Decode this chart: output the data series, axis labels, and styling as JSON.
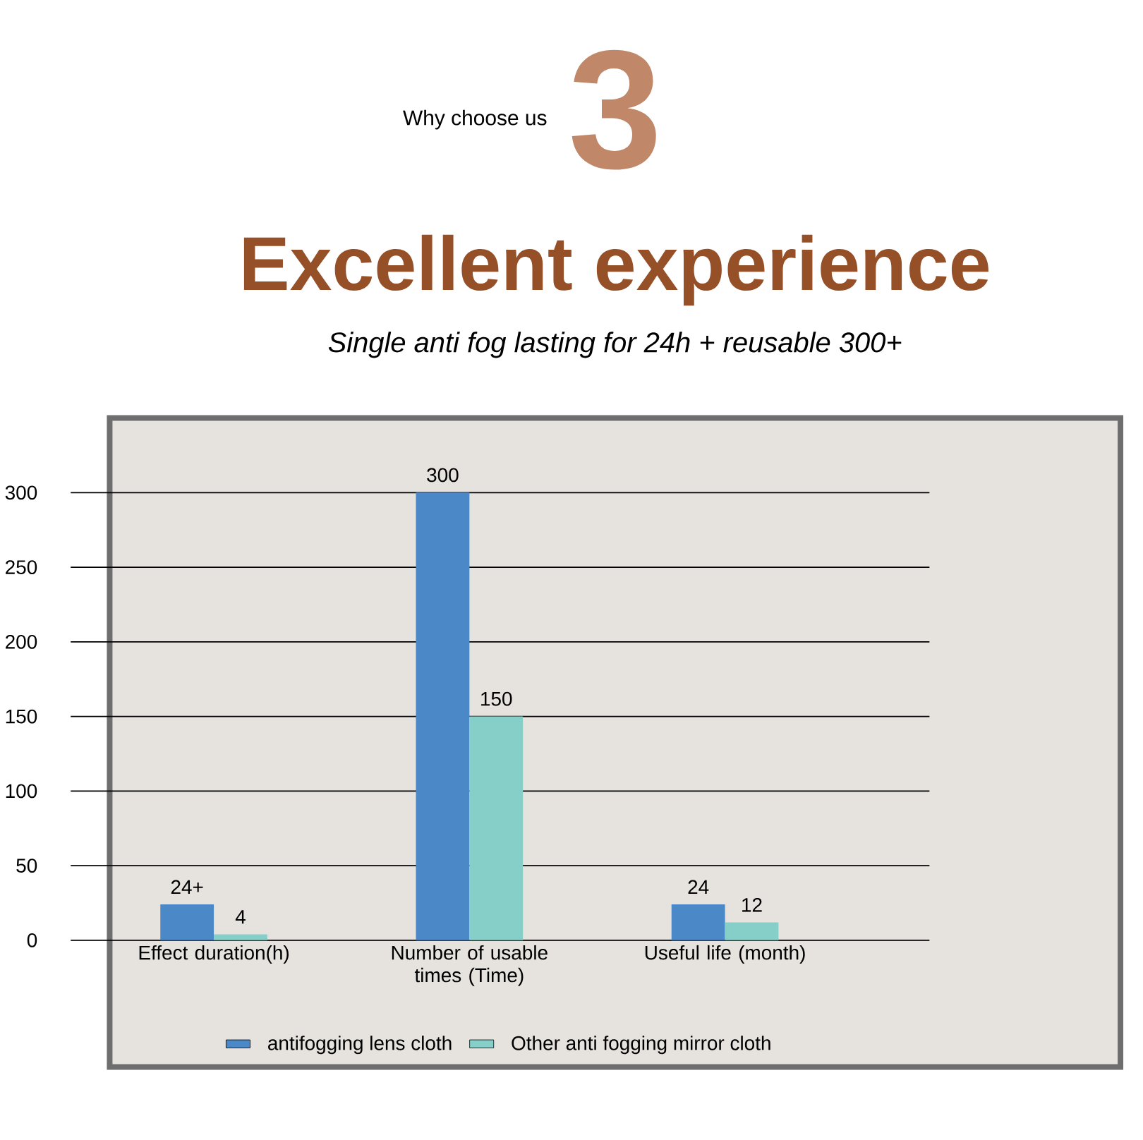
{
  "chart_data": {
    "type": "bar",
    "title": "Excellent experience",
    "subtitle": "Single anti fog lasting for 24h + reusable 300+",
    "annotations": [
      "3",
      "Why choose us"
    ],
    "categories": [
      "Effect duration(h)",
      "Number of usable times (Time)",
      "Useful life (month)"
    ],
    "series": [
      {
        "name": "antifogging lens cloth",
        "color": "#4a88c8",
        "values": [
          24,
          300,
          24
        ],
        "value_labels": [
          "24+",
          "300",
          "24"
        ]
      },
      {
        "name": "Other anti fogging mirror cloth",
        "color": "#86cfc9",
        "values": [
          4,
          150,
          12
        ],
        "value_labels": [
          "4",
          "150",
          "12"
        ]
      }
    ],
    "ylim": [
      0,
      300
    ],
    "yticks": [
      0,
      50,
      100,
      150,
      200,
      250,
      300
    ],
    "grid": "y",
    "legend": "bottom"
  }
}
